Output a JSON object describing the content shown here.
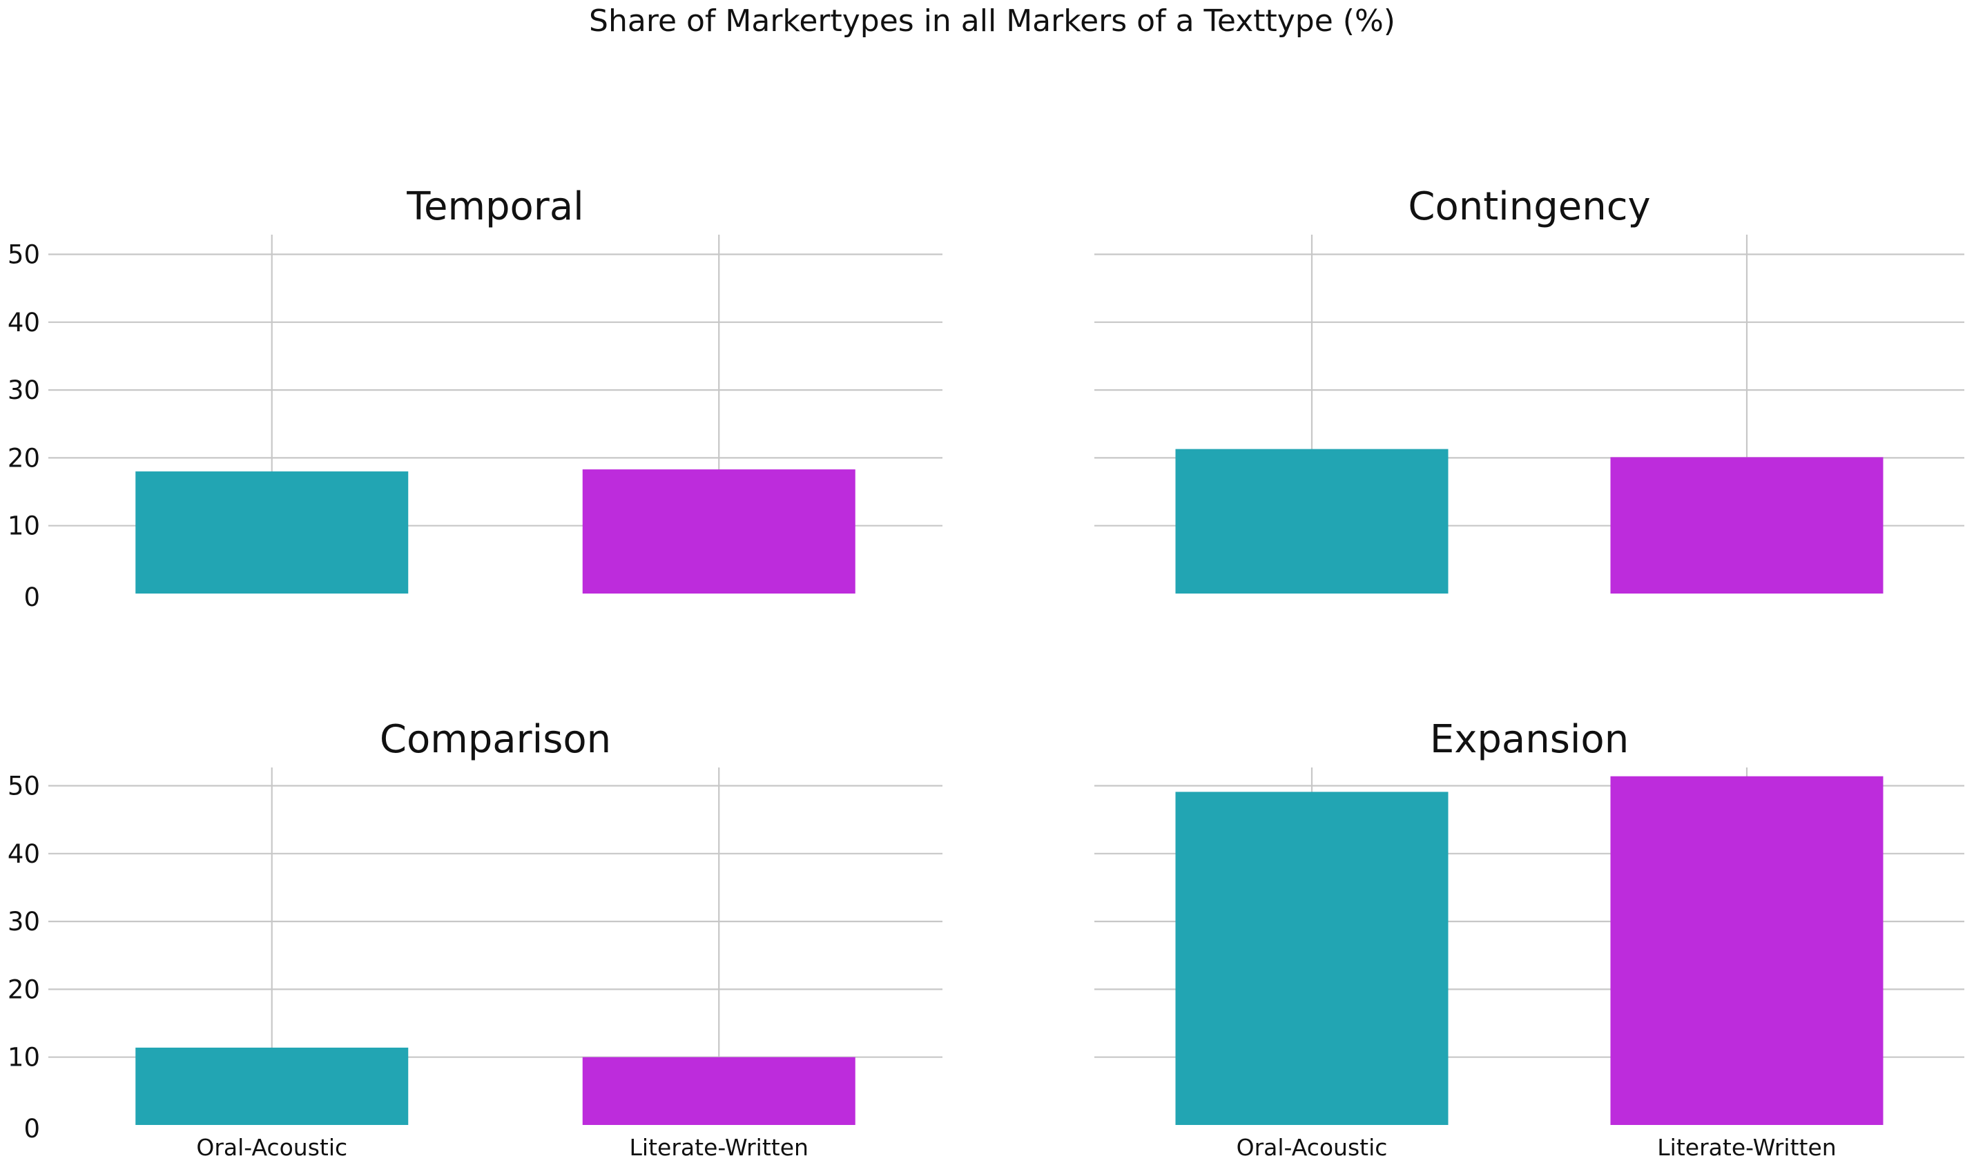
{
  "chart_data": {
    "title": "Share of Markertypes in all Markers of a Texttype (%)",
    "type": "bar",
    "layout": "2x2 grid of subplots, shared y axis, shared x categories",
    "grid": true,
    "legend": "none",
    "categories": [
      "Oral-Acoustic",
      "Literate-Written"
    ],
    "colors": {
      "Oral-Acoustic": "#22a5b3",
      "Literate-Written": "#bd2cdc",
      "grid": "#c7c7c7"
    },
    "ylim": [
      0,
      55
    ],
    "yticks": [
      0,
      10,
      20,
      30,
      40,
      50
    ],
    "subplots": [
      {
        "title": "Temporal",
        "values": [
          18.0,
          18.3
        ]
      },
      {
        "title": "Contingency",
        "values": [
          21.3,
          20.1
        ]
      },
      {
        "title": "Comparison",
        "values": [
          11.4,
          10.0
        ]
      },
      {
        "title": "Expansion",
        "values": [
          49.1,
          51.4
        ]
      }
    ]
  }
}
